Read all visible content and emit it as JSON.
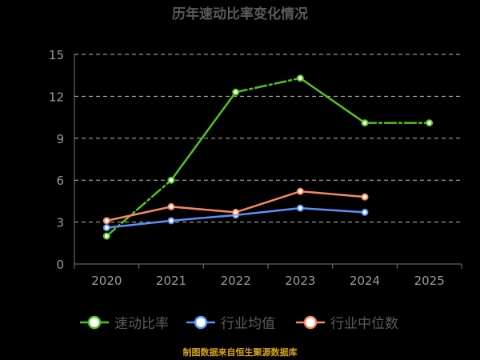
{
  "chart_data": {
    "type": "line",
    "title": "历年速动比率变化情况",
    "categories": [
      "2020",
      "2021",
      "2022",
      "2023",
      "2024",
      "2025"
    ],
    "ylim": [
      0,
      15
    ],
    "yticks": [
      0,
      3,
      6,
      9,
      12,
      15
    ],
    "grid": true,
    "legend_position": "bottom",
    "series": [
      {
        "name": "速动比率",
        "color": "#52c41a",
        "values": [
          2.0,
          6.0,
          12.3,
          13.3,
          10.1,
          10.1
        ],
        "dashed_segments": [
          [
            0,
            1
          ],
          [
            2,
            3
          ],
          [
            4,
            5
          ]
        ]
      },
      {
        "name": "行业均值",
        "color": "#5b8ff9",
        "values": [
          2.6,
          3.1,
          3.5,
          4.0,
          3.7,
          null
        ]
      },
      {
        "name": "行业中位数",
        "color": "#f6875f",
        "values": [
          3.1,
          4.1,
          3.7,
          5.2,
          4.8,
          null
        ]
      }
    ],
    "source": "制图数据来自恒生聚源数据库",
    "source_color": "#d4a017"
  }
}
